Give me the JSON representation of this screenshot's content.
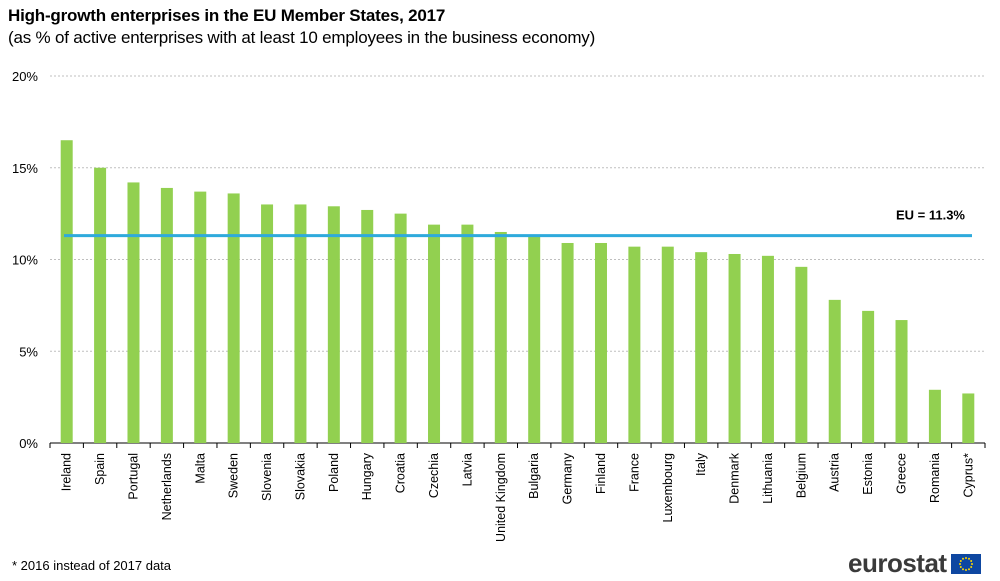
{
  "header": {
    "title": "High-growth enterprises in the EU Member States, 2017",
    "subtitle": "(as % of active enterprises with at least 10 employees in the business economy)"
  },
  "footnote": "* 2016 instead of 2017 data",
  "logo": {
    "text": "eurostat"
  },
  "colors": {
    "bar": "#92d050",
    "reference_line": "#2eaadc",
    "grid": "#bfbfbf"
  },
  "chart_data": {
    "type": "bar",
    "title": "High-growth enterprises in the EU Member States, 2017",
    "subtitle": "(as % of active enterprises with at least 10 employees in the business economy)",
    "xlabel": "",
    "ylabel": "",
    "ylim": [
      0,
      20
    ],
    "yticks": [
      0,
      5,
      10,
      15,
      20
    ],
    "ytick_labels": [
      "0%",
      "5%",
      "10%",
      "15%",
      "20%"
    ],
    "grid": true,
    "categories": [
      "Ireland",
      "Spain",
      "Portugal",
      "Netherlands",
      "Malta",
      "Sweden",
      "Slovenia",
      "Slovakia",
      "Poland",
      "Hungary",
      "Croatia",
      "Czechia",
      "Latvia",
      "United Kingdom",
      "Bulgaria",
      "Germany",
      "Finland",
      "France",
      "Luxembourg",
      "Italy",
      "Denmark",
      "Lithuania",
      "Belgium",
      "Austria",
      "Estonia",
      "Greece",
      "Romania",
      "Cyprus*"
    ],
    "values": [
      16.5,
      15.0,
      14.2,
      13.9,
      13.7,
      13.6,
      13.0,
      13.0,
      12.9,
      12.7,
      12.5,
      11.9,
      11.9,
      11.5,
      11.3,
      10.9,
      10.9,
      10.7,
      10.7,
      10.4,
      10.3,
      10.2,
      9.6,
      7.8,
      7.2,
      6.7,
      2.9,
      2.7
    ],
    "reference_line": {
      "value": 11.3,
      "label": "EU = 11.3%"
    }
  }
}
